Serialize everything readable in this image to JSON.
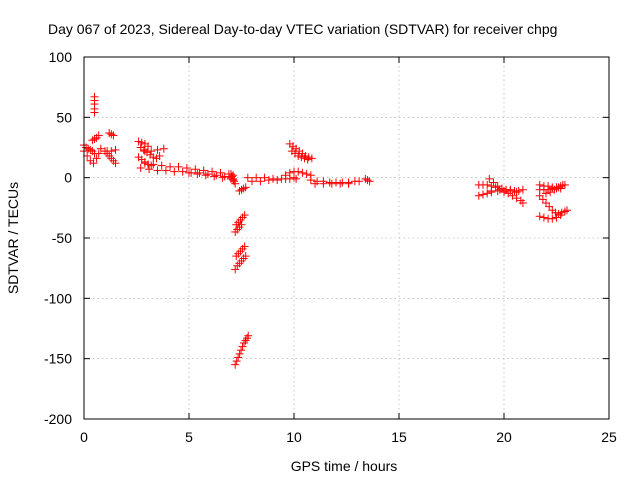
{
  "chart_data": {
    "type": "scatter",
    "title": "Day 067 of 2023, Sidereal Day-to-day VTEC variation (SDTVAR) for receiver chpg",
    "xlabel": "GPS time / hours",
    "ylabel": "SDTVAR / TECUs",
    "xlim": [
      0,
      25
    ],
    "ylim": [
      -200,
      100
    ],
    "xticks": [
      0,
      5,
      10,
      15,
      20,
      25
    ],
    "yticks": [
      -200,
      -150,
      -100,
      -50,
      0,
      50,
      100
    ],
    "xtick_labels": [
      "0",
      "5",
      "10",
      "15",
      "20",
      "25"
    ],
    "ytick_labels": [
      "-200",
      "-150",
      "-100",
      "-50",
      "0",
      "50",
      "100"
    ],
    "grid": true,
    "marker": "+",
    "marker_color": "#ff0000",
    "series": [
      {
        "name": "SDTVAR",
        "tracks": [
          [
            [
              0.0,
              22
            ],
            [
              0.15,
              18
            ],
            [
              0.3,
              14
            ],
            [
              0.45,
              12
            ],
            [
              0.6,
              16
            ],
            [
              0.7,
              20
            ],
            [
              0.8,
              24
            ]
          ],
          [
            [
              0.0,
              27
            ],
            [
              0.1,
              25
            ],
            [
              0.2,
              24
            ],
            [
              0.3,
              23
            ],
            [
              0.4,
              22
            ],
            [
              0.5,
              20
            ]
          ],
          [
            [
              0.4,
              31
            ],
            [
              0.5,
              32
            ],
            [
              0.6,
              33
            ],
            [
              0.7,
              35
            ]
          ],
          [
            [
              0.5,
              67
            ],
            [
              0.5,
              64
            ],
            [
              0.5,
              61
            ],
            [
              0.5,
              57
            ],
            [
              0.5,
              54
            ]
          ],
          [
            [
              1.2,
              37
            ],
            [
              1.3,
              36
            ],
            [
              1.4,
              35
            ]
          ],
          [
            [
              1.0,
              22
            ],
            [
              1.1,
              20
            ],
            [
              1.2,
              18
            ],
            [
              1.3,
              16
            ],
            [
              1.4,
              14
            ],
            [
              1.5,
              12
            ]
          ],
          [
            [
              1.1,
              22
            ],
            [
              1.3,
              22
            ],
            [
              1.5,
              23
            ]
          ],
          [
            [
              2.6,
              30
            ],
            [
              2.75,
              29
            ],
            [
              2.9,
              28
            ],
            [
              3.05,
              26
            ]
          ],
          [
            [
              2.6,
              17
            ],
            [
              2.75,
              15
            ],
            [
              2.9,
              13
            ],
            [
              3.05,
              11
            ],
            [
              3.2,
              10
            ]
          ],
          [
            [
              2.7,
              25
            ],
            [
              2.85,
              23
            ],
            [
              3.0,
              21
            ],
            [
              3.15,
              19
            ],
            [
              3.3,
              17
            ],
            [
              3.45,
              16
            ],
            [
              3.6,
              18
            ]
          ],
          [
            [
              2.9,
              22
            ],
            [
              3.2,
              22
            ],
            [
              3.5,
              23
            ],
            [
              3.8,
              24
            ]
          ],
          [
            [
              2.7,
              8
            ],
            [
              3.1,
              7
            ],
            [
              3.5,
              6
            ],
            [
              3.9,
              6
            ],
            [
              4.3,
              5
            ],
            [
              4.7,
              5
            ],
            [
              5.1,
              4
            ],
            [
              5.5,
              4
            ],
            [
              5.9,
              3
            ],
            [
              6.3,
              2
            ],
            [
              6.7,
              1
            ],
            [
              7.0,
              0
            ]
          ],
          [
            [
              2.9,
              12
            ],
            [
              3.3,
              11
            ],
            [
              3.7,
              10
            ],
            [
              4.1,
              9
            ],
            [
              4.5,
              9
            ],
            [
              4.9,
              8
            ],
            [
              5.3,
              7
            ],
            [
              5.7,
              6
            ],
            [
              6.1,
              5
            ],
            [
              6.5,
              4
            ],
            [
              6.9,
              3
            ],
            [
              7.1,
              2
            ]
          ],
          [
            [
              5.0,
              4
            ],
            [
              5.4,
              3
            ],
            [
              5.8,
              2
            ],
            [
              6.2,
              1
            ],
            [
              6.6,
              0
            ],
            [
              7.0,
              -1
            ],
            [
              7.1,
              -2
            ]
          ],
          [
            [
              7.0,
              3
            ],
            [
              7.05,
              1
            ],
            [
              7.1,
              -1
            ],
            [
              7.15,
              -3
            ],
            [
              7.2,
              -5
            ]
          ],
          [
            [
              7.4,
              -11
            ],
            [
              7.5,
              -10
            ],
            [
              7.6,
              -9
            ],
            [
              7.7,
              -8
            ]
          ],
          [
            [
              7.25,
              -39
            ],
            [
              7.35,
              -37
            ],
            [
              7.45,
              -35
            ],
            [
              7.55,
              -33
            ],
            [
              7.65,
              -31
            ]
          ],
          [
            [
              7.2,
              -45
            ],
            [
              7.3,
              -43
            ],
            [
              7.4,
              -41
            ],
            [
              7.5,
              -39
            ]
          ],
          [
            [
              7.25,
              -65
            ],
            [
              7.35,
              -63
            ],
            [
              7.45,
              -61
            ],
            [
              7.55,
              -59
            ],
            [
              7.65,
              -57
            ]
          ],
          [
            [
              7.2,
              -76
            ],
            [
              7.3,
              -73
            ],
            [
              7.4,
              -71
            ],
            [
              7.5,
              -69
            ],
            [
              7.6,
              -67
            ],
            [
              7.7,
              -65
            ]
          ],
          [
            [
              7.2,
              -155
            ],
            [
              7.27,
              -152
            ],
            [
              7.34,
              -149
            ],
            [
              7.41,
              -146
            ],
            [
              7.48,
              -143
            ],
            [
              7.55,
              -140
            ],
            [
              7.62,
              -137
            ],
            [
              7.69,
              -135
            ],
            [
              7.76,
              -133
            ],
            [
              7.82,
              -131
            ]
          ],
          [
            [
              7.8,
              0
            ],
            [
              8.2,
              0
            ],
            [
              8.6,
              0
            ],
            [
              9.0,
              -1
            ],
            [
              9.4,
              -1
            ],
            [
              9.8,
              -1
            ],
            [
              10.1,
              -1
            ]
          ],
          [
            [
              8.0,
              -3
            ],
            [
              8.4,
              -3
            ],
            [
              8.8,
              -2
            ],
            [
              9.2,
              -2
            ],
            [
              9.6,
              -1
            ],
            [
              10.0,
              0
            ]
          ],
          [
            [
              9.6,
              2
            ],
            [
              9.8,
              4
            ],
            [
              10.0,
              5
            ],
            [
              10.2,
              5
            ],
            [
              10.4,
              4
            ],
            [
              10.6,
              3
            ],
            [
              10.8,
              2
            ]
          ],
          [
            [
              9.8,
              28
            ],
            [
              9.95,
              26
            ],
            [
              10.1,
              24
            ],
            [
              10.25,
              22
            ],
            [
              10.4,
              20
            ],
            [
              10.55,
              18
            ],
            [
              10.7,
              17
            ],
            [
              10.85,
              16
            ]
          ],
          [
            [
              9.9,
              22
            ],
            [
              10.05,
              20
            ],
            [
              10.2,
              18
            ],
            [
              10.35,
              17
            ],
            [
              10.5,
              16
            ],
            [
              10.65,
              15
            ]
          ],
          [
            [
              10.8,
              -2
            ],
            [
              11.1,
              -3
            ],
            [
              11.4,
              -3
            ],
            [
              11.7,
              -4
            ],
            [
              12.0,
              -4
            ],
            [
              12.3,
              -4
            ],
            [
              12.6,
              -4
            ],
            [
              12.9,
              -3
            ],
            [
              13.1,
              -3
            ]
          ],
          [
            [
              11.0,
              -5
            ],
            [
              11.4,
              -5
            ],
            [
              11.8,
              -5
            ],
            [
              12.2,
              -5
            ],
            [
              12.6,
              -5
            ]
          ],
          [
            [
              13.4,
              -1
            ],
            [
              13.5,
              -2
            ],
            [
              13.6,
              -3
            ]
          ],
          [
            [
              18.8,
              -6
            ],
            [
              19.0,
              -6
            ],
            [
              19.2,
              -6
            ],
            [
              19.4,
              -7
            ]
          ],
          [
            [
              18.8,
              -15
            ],
            [
              19.0,
              -14
            ],
            [
              19.2,
              -13
            ],
            [
              19.4,
              -12
            ]
          ],
          [
            [
              19.3,
              -1
            ],
            [
              19.5,
              -4
            ],
            [
              19.7,
              -7
            ],
            [
              19.9,
              -9
            ],
            [
              20.1,
              -10
            ],
            [
              20.3,
              -10
            ],
            [
              20.5,
              -11
            ],
            [
              20.7,
              -11
            ],
            [
              20.9,
              -10
            ]
          ],
          [
            [
              19.6,
              -8
            ],
            [
              19.8,
              -10
            ],
            [
              20.0,
              -12
            ],
            [
              20.2,
              -13
            ],
            [
              20.4,
              -15
            ],
            [
              20.6,
              -17
            ],
            [
              20.8,
              -19
            ],
            [
              20.9,
              -21
            ]
          ],
          [
            [
              19.4,
              -11
            ],
            [
              19.7,
              -11
            ],
            [
              20.0,
              -11
            ],
            [
              20.3,
              -11
            ],
            [
              20.6,
              -12
            ]
          ],
          [
            [
              21.7,
              -10
            ],
            [
              21.9,
              -10
            ],
            [
              22.1,
              -10
            ],
            [
              22.3,
              -9
            ],
            [
              22.5,
              -8
            ],
            [
              22.7,
              -7
            ],
            [
              22.9,
              -6
            ]
          ],
          [
            [
              21.7,
              -6
            ],
            [
              21.9,
              -7
            ],
            [
              22.1,
              -7
            ],
            [
              22.3,
              -8
            ],
            [
              22.5,
              -9
            ],
            [
              22.7,
              -9
            ]
          ],
          [
            [
              21.7,
              -15
            ],
            [
              21.85,
              -18
            ],
            [
              22.0,
              -21
            ],
            [
              22.15,
              -24
            ],
            [
              22.3,
              -27
            ],
            [
              22.45,
              -29
            ],
            [
              22.6,
              -30
            ],
            [
              22.75,
              -29
            ]
          ],
          [
            [
              21.7,
              -32
            ],
            [
              21.9,
              -33
            ],
            [
              22.1,
              -34
            ],
            [
              22.3,
              -34
            ],
            [
              22.5,
              -33
            ],
            [
              22.7,
              -31
            ],
            [
              22.9,
              -28
            ],
            [
              23.0,
              -27
            ]
          ],
          [
            [
              22.0,
              -13
            ],
            [
              22.2,
              -12
            ],
            [
              22.4,
              -10
            ],
            [
              22.6,
              -8
            ],
            [
              22.8,
              -6
            ]
          ]
        ]
      }
    ]
  }
}
